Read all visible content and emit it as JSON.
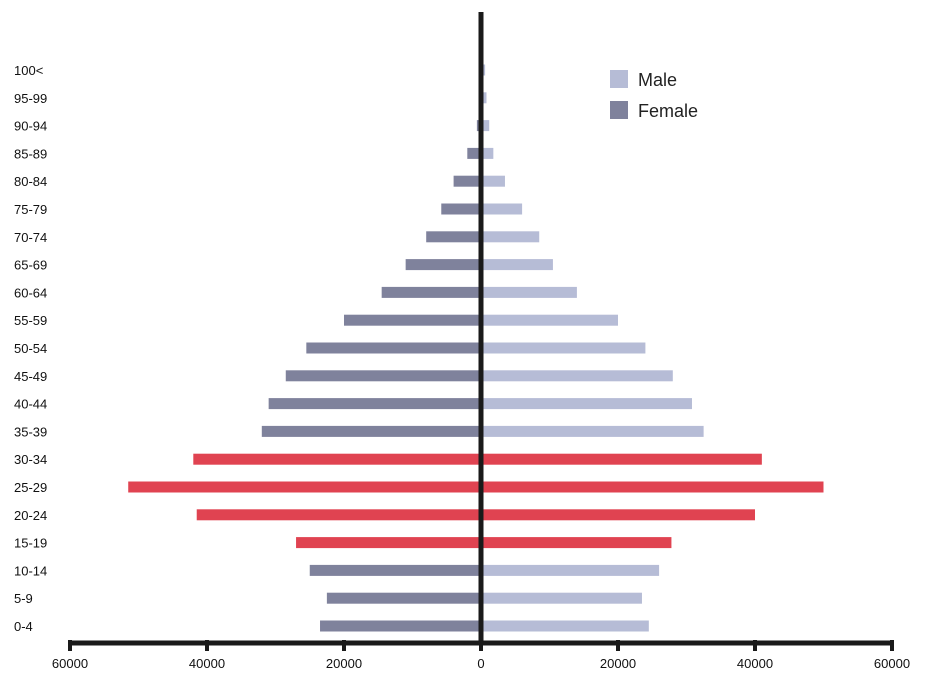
{
  "chart_data": {
    "type": "bar",
    "orientation": "horizontal",
    "layout": "population-pyramid",
    "categories": [
      "0-4",
      "5-9",
      "10-14",
      "15-19",
      "20-24",
      "25-29",
      "30-34",
      "35-39",
      "40-44",
      "45-49",
      "50-54",
      "55-59",
      "60-64",
      "65-69",
      "70-74",
      "75-79",
      "80-84",
      "85-89",
      "90-94",
      "95-99",
      "100<"
    ],
    "series": [
      {
        "name": "Male",
        "side": "right",
        "color": "#b6bcd6",
        "values": [
          24500,
          23500,
          26000,
          27800,
          40000,
          50000,
          41000,
          32500,
          30800,
          28000,
          24000,
          20000,
          14000,
          10500,
          8500,
          6000,
          3500,
          1800,
          1200,
          800,
          600
        ]
      },
      {
        "name": "Female",
        "side": "left",
        "color": "#7f829c",
        "values": [
          23500,
          22500,
          25000,
          27000,
          41500,
          51500,
          42000,
          32000,
          31000,
          28500,
          25500,
          20000,
          14500,
          11000,
          8000,
          5800,
          4000,
          2000,
          600,
          300,
          200
        ]
      }
    ],
    "highlight": {
      "categories": [
        "15-19",
        "20-24",
        "25-29",
        "30-34"
      ],
      "color": "#e04351"
    },
    "x_ticks": [
      "60000",
      "40000",
      "20000",
      "0",
      "20000",
      "40000",
      "60000"
    ],
    "xlim": [
      -60000,
      60000
    ],
    "grid": false,
    "legend": {
      "position": "top-right"
    },
    "title": "",
    "xlabel": "",
    "ylabel": ""
  }
}
